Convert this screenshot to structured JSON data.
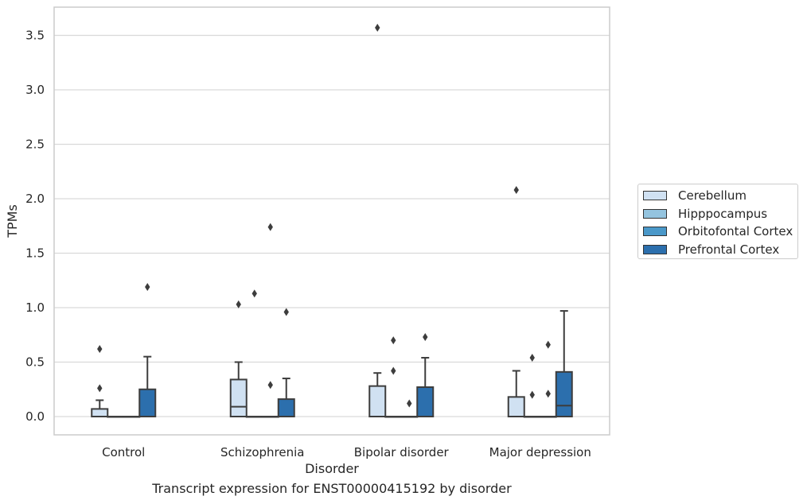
{
  "chart_data": {
    "type": "boxplot",
    "title": "",
    "caption": "Transcript expression for ENST00000415192 by disorder",
    "xlabel": "Disorder",
    "ylabel": "TPMs",
    "ylim": [
      -0.17,
      3.76
    ],
    "yticks": [
      "0.0",
      "0.5",
      "1.0",
      "1.5",
      "2.0",
      "2.5",
      "3.0",
      "3.5"
    ],
    "grid": true,
    "legend_position": "right",
    "categories": [
      "Control",
      "Schizophrenia",
      "Bipolar disorder",
      "Major depression"
    ],
    "series": [
      {
        "name": "Cerebellum",
        "color": "#d0e1f2",
        "boxes": [
          {
            "whisker_low": 0.0,
            "q1": 0.0,
            "median": 0.0,
            "q3": 0.07,
            "whisker_high": 0.15,
            "outliers": [
              0.26,
              0.62
            ]
          },
          {
            "whisker_low": 0.0,
            "q1": 0.0,
            "median": 0.09,
            "q3": 0.34,
            "whisker_high": 0.5,
            "outliers": [
              1.03
            ]
          },
          {
            "whisker_low": 0.0,
            "q1": 0.0,
            "median": 0.0,
            "q3": 0.28,
            "whisker_high": 0.4,
            "outliers": [
              3.57
            ]
          },
          {
            "whisker_low": 0.0,
            "q1": 0.0,
            "median": 0.0,
            "q3": 0.18,
            "whisker_high": 0.42,
            "outliers": [
              2.08
            ]
          }
        ]
      },
      {
        "name": "Hipppocampus",
        "color": "#94c4df",
        "boxes": [
          {
            "whisker_low": 0.0,
            "q1": 0.0,
            "median": 0.0,
            "q3": 0.0,
            "whisker_high": 0.0,
            "outliers": []
          },
          {
            "whisker_low": 0.0,
            "q1": 0.0,
            "median": 0.0,
            "q3": 0.0,
            "whisker_high": 0.0,
            "outliers": [
              1.13
            ]
          },
          {
            "whisker_low": 0.0,
            "q1": 0.0,
            "median": 0.0,
            "q3": 0.0,
            "whisker_high": 0.0,
            "outliers": [
              0.42,
              0.7
            ]
          },
          {
            "whisker_low": 0.0,
            "q1": 0.0,
            "median": 0.0,
            "q3": 0.0,
            "whisker_high": 0.0,
            "outliers": [
              0.2,
              0.54
            ]
          }
        ]
      },
      {
        "name": "Orbitofontal Cortex",
        "color": "#4a98c9",
        "boxes": [
          {
            "whisker_low": 0.0,
            "q1": 0.0,
            "median": 0.0,
            "q3": 0.0,
            "whisker_high": 0.0,
            "outliers": []
          },
          {
            "whisker_low": 0.0,
            "q1": 0.0,
            "median": 0.0,
            "q3": 0.0,
            "whisker_high": 0.0,
            "outliers": [
              0.29,
              1.74
            ]
          },
          {
            "whisker_low": 0.0,
            "q1": 0.0,
            "median": 0.0,
            "q3": 0.0,
            "whisker_high": 0.0,
            "outliers": [
              0.12
            ]
          },
          {
            "whisker_low": 0.0,
            "q1": 0.0,
            "median": 0.0,
            "q3": 0.0,
            "whisker_high": 0.0,
            "outliers": [
              0.21,
              0.66
            ]
          }
        ]
      },
      {
        "name": "Prefrontal Cortex",
        "color": "#2c6fad",
        "boxes": [
          {
            "whisker_low": 0.0,
            "q1": 0.0,
            "median": 0.0,
            "q3": 0.25,
            "whisker_high": 0.55,
            "outliers": [
              1.19
            ]
          },
          {
            "whisker_low": 0.0,
            "q1": 0.0,
            "median": 0.0,
            "q3": 0.16,
            "whisker_high": 0.35,
            "outliers": [
              0.96
            ]
          },
          {
            "whisker_low": 0.0,
            "q1": 0.0,
            "median": 0.0,
            "q3": 0.27,
            "whisker_high": 0.54,
            "outliers": [
              0.73
            ]
          },
          {
            "whisker_low": 0.0,
            "q1": 0.0,
            "median": 0.1,
            "q3": 0.41,
            "whisker_high": 0.97,
            "outliers": []
          }
        ]
      }
    ]
  }
}
